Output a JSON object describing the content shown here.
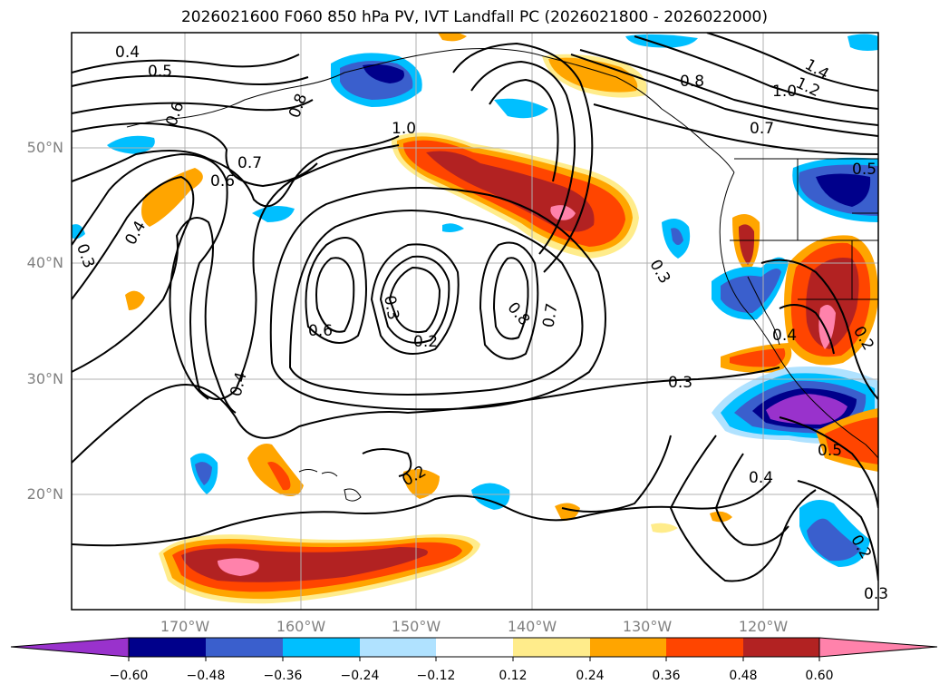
{
  "title": "2026021600 F060 850 hPa PV, IVT Landfall PC (2026021800 - 2026022000)",
  "lat_labels": [
    "50°N",
    "40°N",
    "30°N",
    "20°N"
  ],
  "lon_labels": [
    "170°W",
    "160°W",
    "150°W",
    "140°W",
    "130°W",
    "120°W"
  ],
  "colorbar": {
    "ticks": [
      "−0.60",
      "−0.48",
      "−0.36",
      "−0.24",
      "−0.12",
      "0.12",
      "0.24",
      "0.36",
      "0.48",
      "0.60"
    ],
    "colors": [
      "#9932cc",
      "#00008b",
      "#3a5fcd",
      "#00bfff",
      "#b0e2ff",
      "#ffffff",
      "#ffec8b",
      "#ffa500",
      "#ff4500",
      "#b22222",
      "#ff82ab"
    ],
    "extend": "both"
  },
  "contour_labels": [
    "0.4",
    "0.5",
    "0.6",
    "0.6",
    "0.7",
    "0.8",
    "1.0",
    "0.4",
    "0.3",
    "0.6",
    "0.3",
    "0.2",
    "0.8",
    "0.7",
    "0.3",
    "0.4",
    "0.3",
    "0.2",
    "0.4",
    "0.8",
    "1.4",
    "1.2",
    "1.0",
    "0.7",
    "0.5",
    "0.4",
    "0.2",
    "0.5",
    "0.2",
    "0.3"
  ]
}
